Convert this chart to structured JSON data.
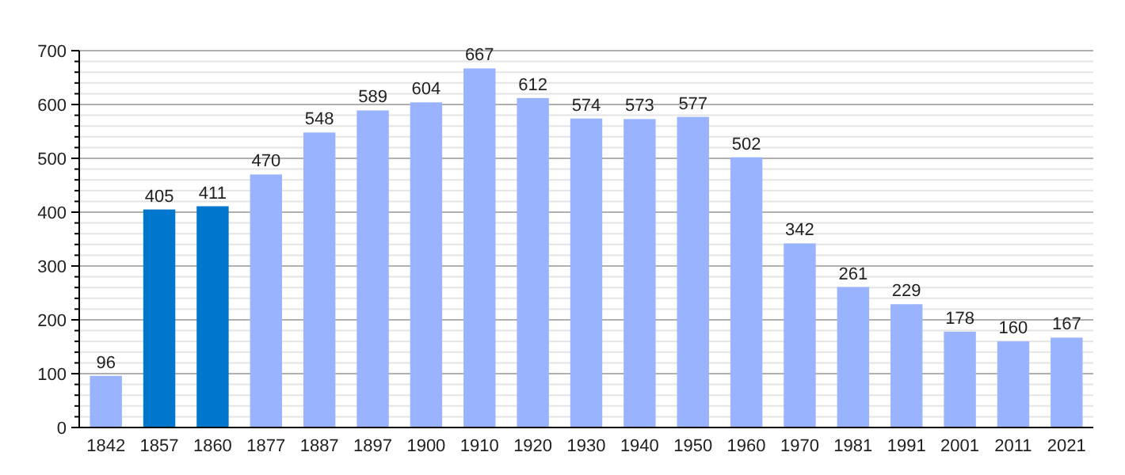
{
  "chart_data": {
    "type": "bar",
    "categories": [
      "1842",
      "1857",
      "1860",
      "1877",
      "1887",
      "1897",
      "1900",
      "1910",
      "1920",
      "1930",
      "1940",
      "1950",
      "1960",
      "1970",
      "1981",
      "1991",
      "2001",
      "2011",
      "2021"
    ],
    "values": [
      96,
      405,
      411,
      470,
      548,
      589,
      604,
      667,
      612,
      574,
      573,
      577,
      502,
      342,
      261,
      229,
      178,
      160,
      167
    ],
    "colors": [
      "#99b3ff",
      "#0077cc",
      "#0077cc",
      "#99b3ff",
      "#99b3ff",
      "#99b3ff",
      "#99b3ff",
      "#99b3ff",
      "#99b3ff",
      "#99b3ff",
      "#99b3ff",
      "#99b3ff",
      "#99b3ff",
      "#99b3ff",
      "#99b3ff",
      "#99b3ff",
      "#99b3ff",
      "#99b3ff",
      "#99b3ff"
    ],
    "ylim": [
      0,
      700
    ],
    "yticks": [
      0,
      {
        "value": 20,
        "label": null
      },
      {
        "value": 40,
        "label": null
      },
      {
        "value": 60,
        "label": null
      },
      {
        "value": 80,
        "label": null
      },
      100,
      {
        "value": 120,
        "label": null
      },
      {
        "value": 140,
        "label": null
      },
      {
        "value": 160,
        "label": null
      },
      {
        "value": 180,
        "label": null
      },
      200,
      {
        "value": 220,
        "label": null
      },
      {
        "value": 240,
        "label": null
      },
      {
        "value": 260,
        "label": null
      },
      {
        "value": 280,
        "label": null
      },
      300,
      {
        "value": 320,
        "label": null
      },
      {
        "value": 340,
        "label": null
      },
      {
        "value": 360,
        "label": null
      },
      {
        "value": 380,
        "label": null
      },
      400,
      {
        "value": 420,
        "label": null
      },
      {
        "value": 440,
        "label": null
      },
      {
        "value": 460,
        "label": null
      },
      {
        "value": 480,
        "label": null
      },
      500,
      {
        "value": 520,
        "label": null
      },
      {
        "value": 540,
        "label": null
      },
      {
        "value": 560,
        "label": null
      },
      {
        "value": 580,
        "label": null
      },
      600,
      {
        "value": 620,
        "label": null
      },
      {
        "value": 640,
        "label": null
      },
      {
        "value": 660,
        "label": null
      },
      {
        "value": 680,
        "label": null
      },
      700
    ],
    "grid": "y",
    "data_labels": true
  }
}
